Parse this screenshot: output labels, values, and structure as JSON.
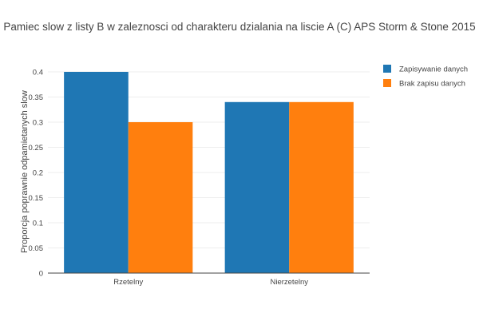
{
  "chart_data": {
    "type": "bar",
    "title": "Pamiec slow z listy B w zaleznosci od charakteru dzialania na liscie A (C) APS Storm & Stone 2015",
    "xlabel": "",
    "ylabel": "Proporcja poprawnie odpamietanych slow",
    "categories": [
      "Rzetelny",
      "Nierzetelny"
    ],
    "series": [
      {
        "name": "Zapisywanie danych",
        "values": [
          0.4,
          0.34
        ],
        "color": "#1f77b4"
      },
      {
        "name": "Brak zapisu danych",
        "values": [
          0.3,
          0.34
        ],
        "color": "#ff7f0e"
      }
    ],
    "ylim": [
      0,
      0.4
    ],
    "yticks": [
      "0",
      "0.05",
      "0.1",
      "0.15",
      "0.2",
      "0.25",
      "0.3",
      "0.35",
      "0.4"
    ],
    "ytick_values": [
      0,
      0.05,
      0.1,
      0.15,
      0.2,
      0.25,
      0.3,
      0.35,
      0.4
    ],
    "grid": true,
    "legend_position": "top-right"
  }
}
